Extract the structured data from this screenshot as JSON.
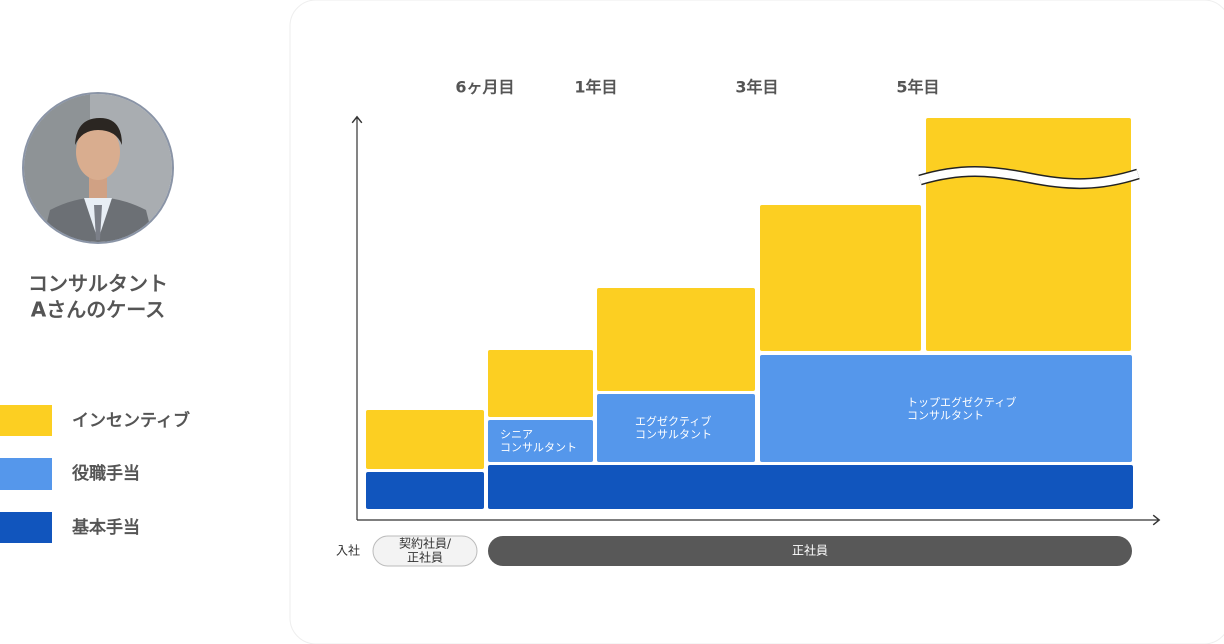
{
  "profile": {
    "title": [
      "コンサルタント",
      "Aさんのケース"
    ]
  },
  "legend": {
    "items": [
      "インセンティブ",
      "役職手当",
      "基本手当"
    ]
  },
  "timeline": {
    "labels": [
      "6ヶ月目",
      "1年目",
      "3年目",
      "5年目"
    ]
  },
  "blocks": {
    "senior": [
      "シニア",
      "コンサルタント"
    ],
    "executive": [
      "エグゼクティブ",
      "コンサルタント"
    ],
    "top_executive": [
      "トップエグゼクティブ",
      "コンサルタント"
    ]
  },
  "employment": {
    "start": "入社",
    "contract": [
      "契約社員/",
      "正社員"
    ],
    "regular": "正社員"
  }
}
